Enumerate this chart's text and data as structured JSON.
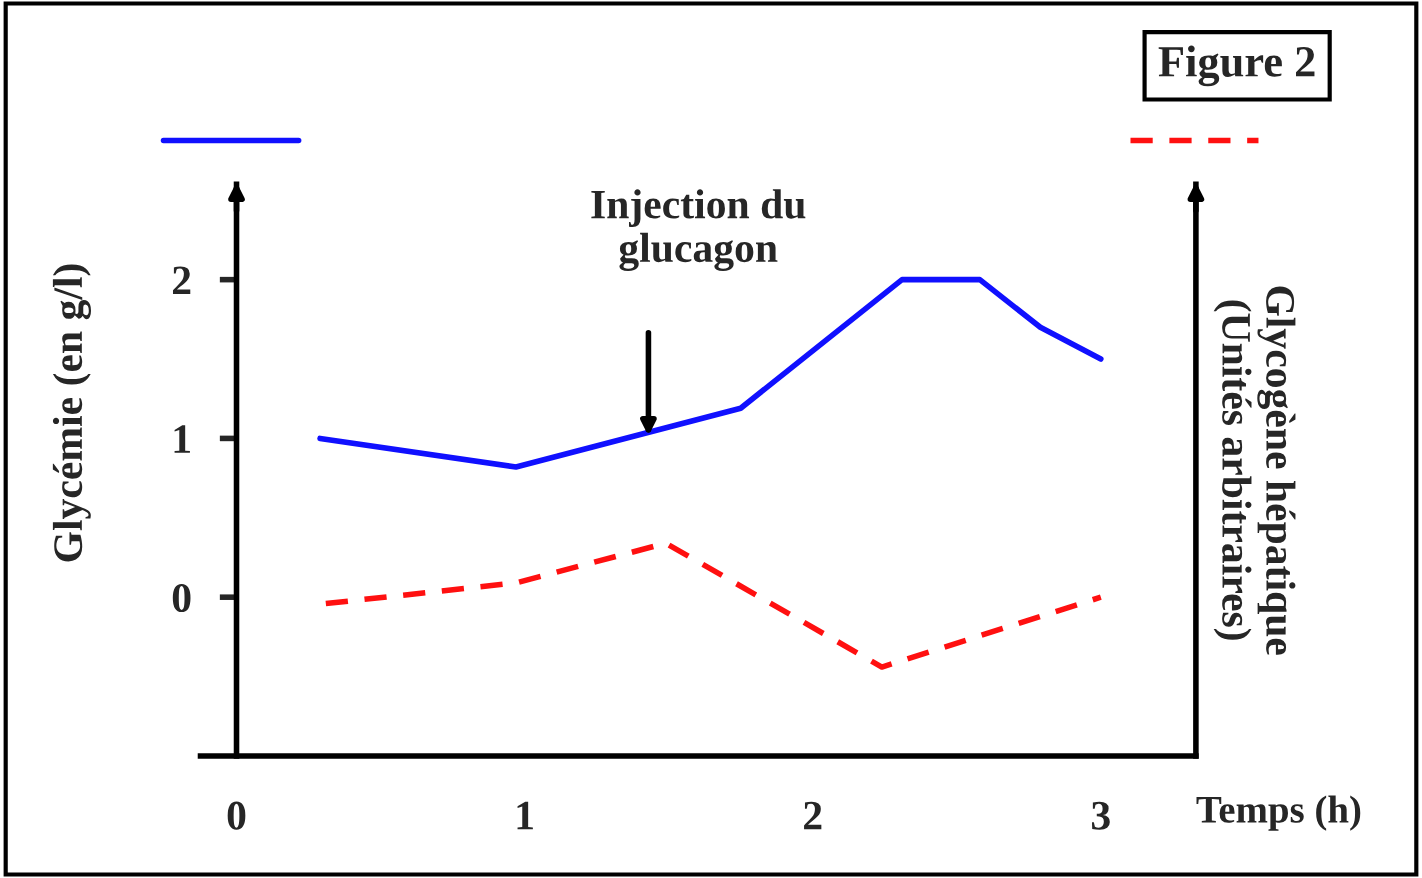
{
  "chart_data": {
    "type": "line",
    "title": "Figure 2",
    "xlabel": "Temps (h)",
    "ylabel": "Glycémie (en g/l)",
    "y2label": "Glycogène hépatique\n(Unités arbitraires)",
    "annotations": [
      "Injection du\nglucagon"
    ],
    "series": [
      {
        "color": "#1010ff",
        "line_style": "solid",
        "x": [
          0.29,
          0.97,
          1.75,
          2.31,
          2.58,
          2.79,
          3.0
        ],
        "values": [
          1.0,
          0.82,
          1.19,
          2.0,
          2.0,
          1.7,
          1.5
        ]
      },
      {
        "color": "#ff1010",
        "line_style": "dashed",
        "x": [
          0.31,
          0.97,
          1.49,
          2.24,
          3.0
        ],
        "values": [
          -0.04,
          0.09,
          0.34,
          -0.44,
          0.0
        ]
      }
    ],
    "xlim": [
      -0.125,
      3.33
    ],
    "ylim": [
      -1,
      2.6
    ],
    "xticks": [
      0,
      1,
      2,
      3
    ],
    "yticks": [
      0,
      1,
      2
    ],
    "grid": false
  }
}
